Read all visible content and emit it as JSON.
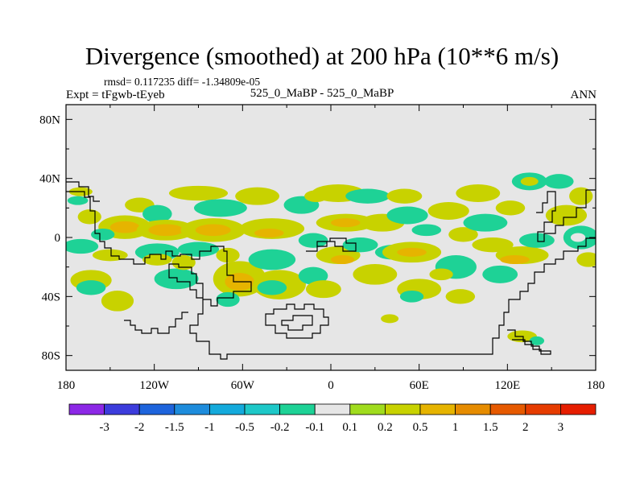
{
  "header": {
    "title": "Divergence (smoothed) at 200 hPa (10**6 m/s)",
    "stats": "rmsd= 0.117235 diff= -1.34809e-05",
    "experiment": "Expt = tFgwb-tEyeb",
    "cases": "525_0_MaBP - 525_0_MaBP",
    "season": "ANN"
  },
  "chart_data": {
    "type": "heatmap",
    "title": "Divergence (smoothed) at 200 hPa (10**6 m/s)",
    "xlabel": "",
    "ylabel": "",
    "xlim": [
      -180,
      180
    ],
    "ylim": [
      -90,
      90
    ],
    "x_ticks": [
      {
        "value": -180,
        "label": "180"
      },
      {
        "value": -120,
        "label": "120W"
      },
      {
        "value": -60,
        "label": "60W"
      },
      {
        "value": 0,
        "label": "0"
      },
      {
        "value": 60,
        "label": "60E"
      },
      {
        "value": 120,
        "label": "120E"
      },
      {
        "value": 180,
        "label": "180"
      }
    ],
    "y_ticks": [
      {
        "value": 80,
        "label": "80N"
      },
      {
        "value": 40,
        "label": "40N"
      },
      {
        "value": 0,
        "label": "0"
      },
      {
        "value": -40,
        "label": "40S"
      },
      {
        "value": -80,
        "label": "80S"
      }
    ],
    "colorbar": {
      "labels": [
        "-3",
        "-2",
        "-1.5",
        "-1",
        "-0.5",
        "-0.2",
        "-0.1",
        "0.1",
        "0.2",
        "0.5",
        "1",
        "1.5",
        "2",
        "3"
      ],
      "colors": [
        "#8c28e6",
        "#3c3cdc",
        "#1e64dc",
        "#1e8cdc",
        "#14aadc",
        "#1ec8c8",
        "#1ed296",
        "#e6e6e6",
        "#a0dc1e",
        "#c8d200",
        "#e6b400",
        "#e68c00",
        "#e65a00",
        "#e63c00",
        "#e61e00"
      ]
    },
    "background_color": "#e6e6e6",
    "features": [
      {
        "lon": -170,
        "lat": 31,
        "rx": 8,
        "ry": 3,
        "level": 0.2
      },
      {
        "lon": -172,
        "lat": 25,
        "rx": 7,
        "ry": 3,
        "level": -0.2
      },
      {
        "lon": -164,
        "lat": 14,
        "rx": 8,
        "ry": 5,
        "level": 0.2
      },
      {
        "lon": -170,
        "lat": -6,
        "rx": 12,
        "ry": 5,
        "level": -0.2
      },
      {
        "lon": -163,
        "lat": -29,
        "rx": 14,
        "ry": 7,
        "level": 0.2
      },
      {
        "lon": -163,
        "lat": -34,
        "rx": 10,
        "ry": 5,
        "level": -0.2
      },
      {
        "lon": -145,
        "lat": -43,
        "rx": 11,
        "ry": 7,
        "level": 0.2
      },
      {
        "lon": -150,
        "lat": -12,
        "rx": 12,
        "ry": 4,
        "level": 0.2
      },
      {
        "lon": -140,
        "lat": 7,
        "rx": 18,
        "ry": 8,
        "level": 0.2
      },
      {
        "lon": -140,
        "lat": 7,
        "rx": 10,
        "ry": 4,
        "level": 0.5
      },
      {
        "lon": -155,
        "lat": 2,
        "rx": 8,
        "ry": 4,
        "level": -0.2
      },
      {
        "lon": -130,
        "lat": 22,
        "rx": 10,
        "ry": 5,
        "level": 0.2
      },
      {
        "lon": -118,
        "lat": 16,
        "rx": 10,
        "ry": 6,
        "level": -0.2
      },
      {
        "lon": -112,
        "lat": 5,
        "rx": 20,
        "ry": 7,
        "level": 0.2
      },
      {
        "lon": -112,
        "lat": 5,
        "rx": 12,
        "ry": 4,
        "level": 0.5
      },
      {
        "lon": -118,
        "lat": -10,
        "rx": 15,
        "ry": 6,
        "level": -0.2
      },
      {
        "lon": -118,
        "lat": -15,
        "rx": 10,
        "ry": 4,
        "level": 0.2
      },
      {
        "lon": -105,
        "lat": -28,
        "rx": 15,
        "ry": 7,
        "level": -0.2
      },
      {
        "lon": -100,
        "lat": -17,
        "rx": 8,
        "ry": 5,
        "level": 0.2
      },
      {
        "lon": -90,
        "lat": 30,
        "rx": 20,
        "ry": 5,
        "level": 0.2
      },
      {
        "lon": -75,
        "lat": 20,
        "rx": 18,
        "ry": 6,
        "level": -0.2
      },
      {
        "lon": -80,
        "lat": 5,
        "rx": 22,
        "ry": 8,
        "level": 0.2
      },
      {
        "lon": -80,
        "lat": 5,
        "rx": 12,
        "ry": 4,
        "level": 0.5
      },
      {
        "lon": -90,
        "lat": -8,
        "rx": 14,
        "ry": 5,
        "level": -0.2
      },
      {
        "lon": -70,
        "lat": -12,
        "rx": 8,
        "ry": 5,
        "level": 0.2
      },
      {
        "lon": -62,
        "lat": -28,
        "rx": 18,
        "ry": 12,
        "level": 0.2
      },
      {
        "lon": -62,
        "lat": -30,
        "rx": 10,
        "ry": 6,
        "level": 0.5
      },
      {
        "lon": -70,
        "lat": -42,
        "rx": 8,
        "ry": 5,
        "level": -0.2
      },
      {
        "lon": -50,
        "lat": 28,
        "rx": 15,
        "ry": 6,
        "level": 0.2
      },
      {
        "lon": -40,
        "lat": 6,
        "rx": 22,
        "ry": 7,
        "level": 0.2
      },
      {
        "lon": -42,
        "lat": 3,
        "rx": 10,
        "ry": 3,
        "level": 0.5
      },
      {
        "lon": -40,
        "lat": -15,
        "rx": 16,
        "ry": 7,
        "level": -0.2
      },
      {
        "lon": -35,
        "lat": -32,
        "rx": 18,
        "ry": 10,
        "level": 0.2
      },
      {
        "lon": -40,
        "lat": -34,
        "rx": 10,
        "ry": 5,
        "level": -0.2
      },
      {
        "lon": -20,
        "lat": 22,
        "rx": 12,
        "ry": 6,
        "level": -0.2
      },
      {
        "lon": -10,
        "lat": 28,
        "rx": 8,
        "ry": 4,
        "level": 0.2
      },
      {
        "lon": -12,
        "lat": -2,
        "rx": 10,
        "ry": 5,
        "level": -0.2
      },
      {
        "lon": -12,
        "lat": -26,
        "rx": 10,
        "ry": 6,
        "level": -0.2
      },
      {
        "lon": -5,
        "lat": -35,
        "rx": 12,
        "ry": 6,
        "level": 0.2
      },
      {
        "lon": 5,
        "lat": 30,
        "rx": 18,
        "ry": 6,
        "level": 0.2
      },
      {
        "lon": 10,
        "lat": 10,
        "rx": 20,
        "ry": 6,
        "level": 0.2
      },
      {
        "lon": 10,
        "lat": 10,
        "rx": 10,
        "ry": 3,
        "level": 0.5
      },
      {
        "lon": 5,
        "lat": -12,
        "rx": 15,
        "ry": 6,
        "level": 0.2
      },
      {
        "lon": 8,
        "lat": -15,
        "rx": 8,
        "ry": 3,
        "level": 0.5
      },
      {
        "lon": 20,
        "lat": -5,
        "rx": 12,
        "ry": 5,
        "level": -0.2
      },
      {
        "lon": 25,
        "lat": 28,
        "rx": 15,
        "ry": 5,
        "level": -0.2
      },
      {
        "lon": 35,
        "lat": 10,
        "rx": 15,
        "ry": 6,
        "level": 0.2
      },
      {
        "lon": 30,
        "lat": -25,
        "rx": 15,
        "ry": 7,
        "level": 0.2
      },
      {
        "lon": 42,
        "lat": -10,
        "rx": 12,
        "ry": 5,
        "level": -0.2
      },
      {
        "lon": 50,
        "lat": 28,
        "rx": 12,
        "ry": 5,
        "level": 0.2
      },
      {
        "lon": 52,
        "lat": 15,
        "rx": 14,
        "ry": 6,
        "level": -0.2
      },
      {
        "lon": 55,
        "lat": -10,
        "rx": 20,
        "ry": 7,
        "level": 0.2
      },
      {
        "lon": 55,
        "lat": -10,
        "rx": 10,
        "ry": 3,
        "level": 0.5
      },
      {
        "lon": 60,
        "lat": -35,
        "rx": 15,
        "ry": 7,
        "level": 0.2
      },
      {
        "lon": 55,
        "lat": -40,
        "rx": 8,
        "ry": 4,
        "level": -0.2
      },
      {
        "lon": 40,
        "lat": -55,
        "rx": 6,
        "ry": 3,
        "level": 0.2
      },
      {
        "lon": 65,
        "lat": 5,
        "rx": 10,
        "ry": 4,
        "level": -0.2
      },
      {
        "lon": 80,
        "lat": 18,
        "rx": 14,
        "ry": 6,
        "level": 0.2
      },
      {
        "lon": 85,
        "lat": -20,
        "rx": 14,
        "ry": 8,
        "level": -0.2
      },
      {
        "lon": 75,
        "lat": -25,
        "rx": 8,
        "ry": 4,
        "level": 0.2
      },
      {
        "lon": 88,
        "lat": -40,
        "rx": 10,
        "ry": 5,
        "level": 0.2
      },
      {
        "lon": 90,
        "lat": 2,
        "rx": 10,
        "ry": 5,
        "level": 0.2
      },
      {
        "lon": 100,
        "lat": 30,
        "rx": 15,
        "ry": 6,
        "level": 0.2
      },
      {
        "lon": 105,
        "lat": 10,
        "rx": 15,
        "ry": 6,
        "level": -0.2
      },
      {
        "lon": 110,
        "lat": -5,
        "rx": 14,
        "ry": 5,
        "level": 0.2
      },
      {
        "lon": 115,
        "lat": -25,
        "rx": 12,
        "ry": 6,
        "level": -0.2
      },
      {
        "lon": 122,
        "lat": 20,
        "rx": 10,
        "ry": 5,
        "level": 0.2
      },
      {
        "lon": 130,
        "lat": -12,
        "rx": 18,
        "ry": 6,
        "level": 0.2
      },
      {
        "lon": 125,
        "lat": -15,
        "rx": 10,
        "ry": 3,
        "level": 0.5
      },
      {
        "lon": 135,
        "lat": 38,
        "rx": 12,
        "ry": 6,
        "level": -0.2
      },
      {
        "lon": 135,
        "lat": 38,
        "rx": 6,
        "ry": 3,
        "level": 0.2
      },
      {
        "lon": 140,
        "lat": -2,
        "rx": 12,
        "ry": 5,
        "level": -0.2
      },
      {
        "lon": 155,
        "lat": 38,
        "rx": 10,
        "ry": 5,
        "level": -0.2
      },
      {
        "lon": 160,
        "lat": 15,
        "rx": 14,
        "ry": 7,
        "level": 0.2
      },
      {
        "lon": 170,
        "lat": 0,
        "rx": 12,
        "ry": 8,
        "level": -0.2
      },
      {
        "lon": 168,
        "lat": 0,
        "rx": 5,
        "ry": 3,
        "level": -0.1
      },
      {
        "lon": 170,
        "lat": 28,
        "rx": 8,
        "ry": 6,
        "level": 0.2
      },
      {
        "lon": 175,
        "lat": -15,
        "rx": 8,
        "ry": 5,
        "level": 0.2
      },
      {
        "lon": 130,
        "lat": -67,
        "rx": 10,
        "ry": 4,
        "level": 0.2
      },
      {
        "lon": 140,
        "lat": -70,
        "rx": 5,
        "ry": 3,
        "level": -0.2
      }
    ]
  }
}
